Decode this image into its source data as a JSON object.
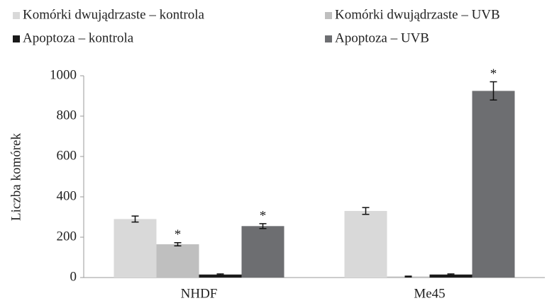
{
  "chart_data": {
    "type": "bar",
    "y_label": "Liczba komórek",
    "categories": [
      "NHDF",
      "Me45"
    ],
    "series": [
      {
        "name": "Komórki dwujądrzaste – kontrola",
        "color": "#d9d9d9",
        "values": [
          290,
          330
        ],
        "errors": [
          15,
          17
        ],
        "labels": [
          null,
          null
        ]
      },
      {
        "name": "Komórki dwujądrzaste – UVB",
        "color": "#bfbfbf",
        "values": [
          165,
          5
        ],
        "errors": [
          8,
          2
        ],
        "labels": [
          "*",
          null
        ]
      },
      {
        "name": "Apoptoza – kontrola",
        "color": "#1a1a1a",
        "values": [
          15,
          15
        ],
        "errors": [
          3,
          3
        ],
        "labels": [
          null,
          null
        ]
      },
      {
        "name": "Apoptoza – UVB",
        "color": "#6d6e71",
        "values": [
          255,
          925
        ],
        "errors": [
          12,
          45
        ],
        "labels": [
          "*",
          "*"
        ]
      }
    ],
    "ylim": [
      0,
      1000
    ],
    "yticks": [
      0,
      200,
      400,
      600,
      800,
      1000
    ],
    "grid": false,
    "legend": "top"
  }
}
